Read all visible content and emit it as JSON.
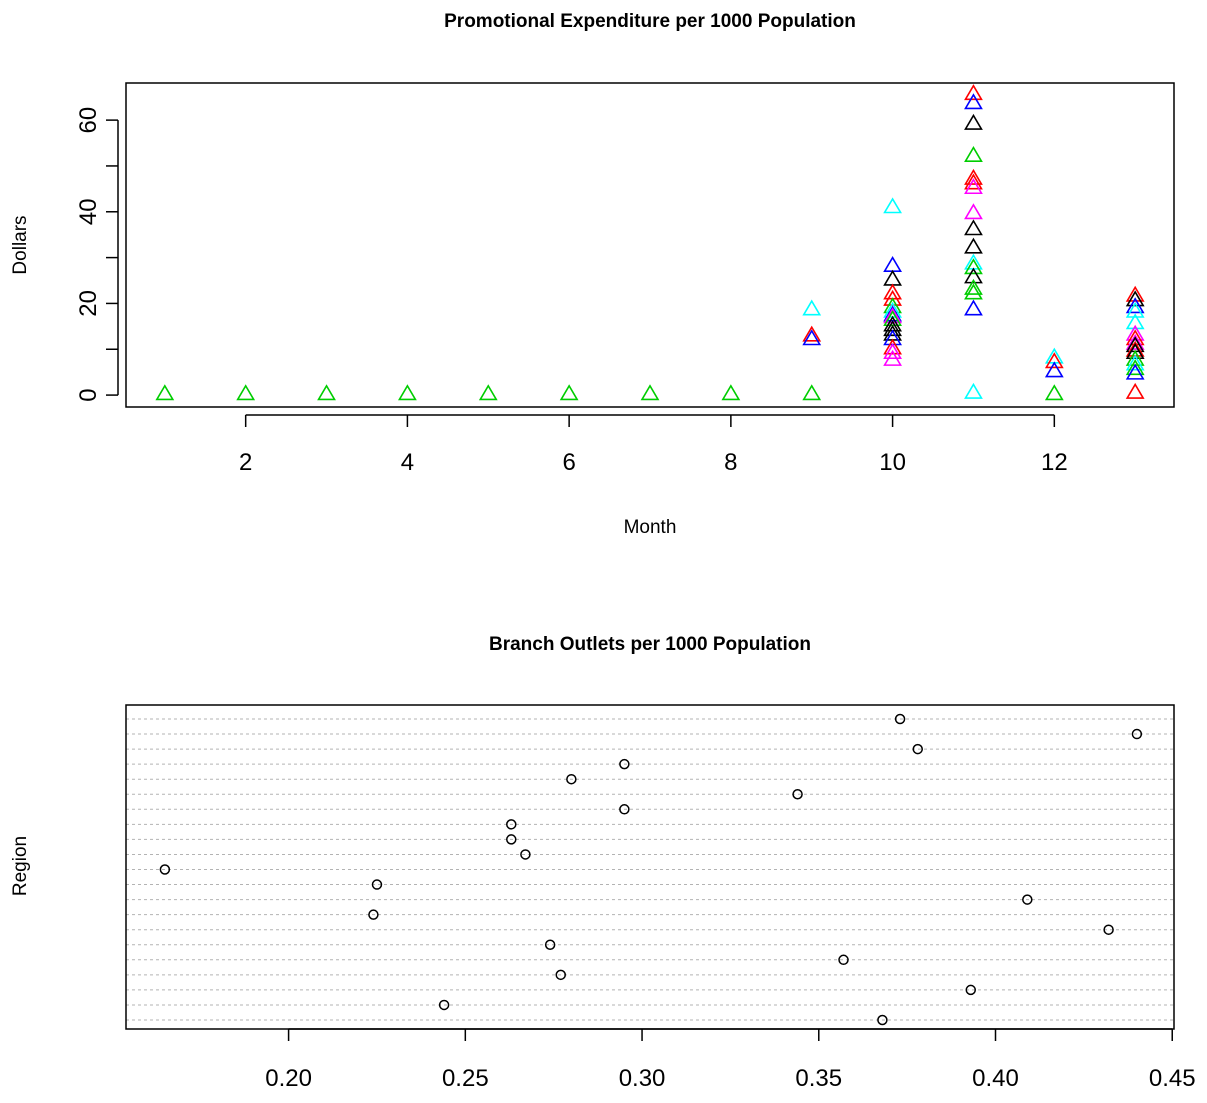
{
  "chart_data": [
    {
      "type": "scatter",
      "title": "Promotional Expenditure per 1000 Population",
      "xlabel": "Month",
      "ylabel": "Dollars",
      "xlim": [
        0.52,
        13.48
      ],
      "ylim": [
        -2.6,
        68.1
      ],
      "x_ticks": [
        2,
        4,
        6,
        8,
        10,
        12
      ],
      "y_ticks": [
        0,
        20,
        40,
        60
      ],
      "marker": "triangle",
      "points": [
        {
          "x": 1,
          "y": 0,
          "color": "#00CD00"
        },
        {
          "x": 2,
          "y": 0,
          "color": "#00CD00"
        },
        {
          "x": 3,
          "y": 0,
          "color": "#00CD00"
        },
        {
          "x": 4,
          "y": 0,
          "color": "#00CD00"
        },
        {
          "x": 5,
          "y": 0,
          "color": "#00CD00"
        },
        {
          "x": 6,
          "y": 0,
          "color": "#00CD00"
        },
        {
          "x": 7,
          "y": 0,
          "color": "#00CD00"
        },
        {
          "x": 8,
          "y": 0,
          "color": "#00CD00"
        },
        {
          "x": 9,
          "y": 0,
          "color": "#00CD00"
        },
        {
          "x": 9,
          "y": 18.5,
          "color": "#00FFFF"
        },
        {
          "x": 9,
          "y": 12.8,
          "color": "#FF0000"
        },
        {
          "x": 9,
          "y": 12.0,
          "color": "#0000FF"
        },
        {
          "x": 10,
          "y": 40.8,
          "color": "#00FFFF"
        },
        {
          "x": 10,
          "y": 28.0,
          "color": "#0000FF"
        },
        {
          "x": 10,
          "y": 25.0,
          "color": "#000000"
        },
        {
          "x": 10,
          "y": 22.0,
          "color": "#FF0000"
        },
        {
          "x": 10,
          "y": 20.6,
          "color": "#FF0000"
        },
        {
          "x": 10,
          "y": 19.0,
          "color": "#00CD00"
        },
        {
          "x": 10,
          "y": 18.0,
          "color": "#00FFFF"
        },
        {
          "x": 10,
          "y": 17.2,
          "color": "#0000FF"
        },
        {
          "x": 10,
          "y": 16.8,
          "color": "#FF00FF"
        },
        {
          "x": 10,
          "y": 16.2,
          "color": "#00CD00"
        },
        {
          "x": 10,
          "y": 15.0,
          "color": "#000000"
        },
        {
          "x": 10,
          "y": 14.0,
          "color": "#000000"
        },
        {
          "x": 10,
          "y": 13.0,
          "color": "#000000"
        },
        {
          "x": 10,
          "y": 12.0,
          "color": "#0000FF"
        },
        {
          "x": 10,
          "y": 10.0,
          "color": "#FF0000"
        },
        {
          "x": 10,
          "y": 9.0,
          "color": "#FF00FF"
        },
        {
          "x": 10,
          "y": 7.5,
          "color": "#FF00FF"
        },
        {
          "x": 11,
          "y": 65.5,
          "color": "#FF0000"
        },
        {
          "x": 11,
          "y": 63.5,
          "color": "#0000FF"
        },
        {
          "x": 11,
          "y": 59.0,
          "color": "#000000"
        },
        {
          "x": 11,
          "y": 52.0,
          "color": "#00CD00"
        },
        {
          "x": 11,
          "y": 47.0,
          "color": "#FF0000"
        },
        {
          "x": 11,
          "y": 46.0,
          "color": "#FF0000"
        },
        {
          "x": 11,
          "y": 45.0,
          "color": "#FF00FF"
        },
        {
          "x": 11,
          "y": 39.5,
          "color": "#FF00FF"
        },
        {
          "x": 11,
          "y": 36.0,
          "color": "#000000"
        },
        {
          "x": 11,
          "y": 32.0,
          "color": "#000000"
        },
        {
          "x": 11,
          "y": 28.5,
          "color": "#00FFFF"
        },
        {
          "x": 11,
          "y": 27.5,
          "color": "#00CD00"
        },
        {
          "x": 11,
          "y": 25.5,
          "color": "#000000"
        },
        {
          "x": 11,
          "y": 23.0,
          "color": "#00CD00"
        },
        {
          "x": 11,
          "y": 22.0,
          "color": "#00CD00"
        },
        {
          "x": 11,
          "y": 18.5,
          "color": "#0000FF"
        },
        {
          "x": 11,
          "y": 0.3,
          "color": "#00FFFF"
        },
        {
          "x": 12,
          "y": 8.0,
          "color": "#00FFFF"
        },
        {
          "x": 12,
          "y": 7.0,
          "color": "#FF0000"
        },
        {
          "x": 12,
          "y": 5.0,
          "color": "#0000FF"
        },
        {
          "x": 12,
          "y": 0,
          "color": "#00CD00"
        },
        {
          "x": 13,
          "y": 21.5,
          "color": "#FF0000"
        },
        {
          "x": 13,
          "y": 20.5,
          "color": "#000000"
        },
        {
          "x": 13,
          "y": 19.0,
          "color": "#0000FF"
        },
        {
          "x": 13,
          "y": 18.0,
          "color": "#00FFFF"
        },
        {
          "x": 13,
          "y": 15.5,
          "color": "#00FFFF"
        },
        {
          "x": 13,
          "y": 13.0,
          "color": "#FF00FF"
        },
        {
          "x": 13,
          "y": 12.0,
          "color": "#FF0000"
        },
        {
          "x": 13,
          "y": 11.0,
          "color": "#FF00FF"
        },
        {
          "x": 13,
          "y": 10.5,
          "color": "#000000"
        },
        {
          "x": 13,
          "y": 9.5,
          "color": "#FF0000"
        },
        {
          "x": 13,
          "y": 9.0,
          "color": "#000000"
        },
        {
          "x": 13,
          "y": 7.5,
          "color": "#00CD00"
        },
        {
          "x": 13,
          "y": 6.5,
          "color": "#00FFFF"
        },
        {
          "x": 13,
          "y": 5.5,
          "color": "#00CD00"
        },
        {
          "x": 13,
          "y": 4.5,
          "color": "#0000FF"
        },
        {
          "x": 13,
          "y": 0.3,
          "color": "#FF0000"
        }
      ]
    },
    {
      "type": "scatter",
      "title": "Branch Outlets per 1000 Population",
      "xlabel": "",
      "ylabel": "Region",
      "xlim": [
        0.154,
        0.4505
      ],
      "x_ticks": [
        "0.20",
        "0.25",
        "0.30",
        "0.35",
        "0.40",
        "0.45"
      ],
      "x_tick_values": [
        0.2,
        0.25,
        0.3,
        0.35,
        0.4,
        0.45
      ],
      "grid": true,
      "marker": "circle",
      "n_rows": 21,
      "points": [
        {
          "row": 1,
          "x": 0.373
        },
        {
          "row": 2,
          "x": 0.44
        },
        {
          "row": 3,
          "x": 0.378
        },
        {
          "row": 4,
          "x": 0.295
        },
        {
          "row": 5,
          "x": 0.28
        },
        {
          "row": 6,
          "x": 0.344
        },
        {
          "row": 7,
          "x": 0.295
        },
        {
          "row": 8,
          "x": 0.263
        },
        {
          "row": 9,
          "x": 0.263
        },
        {
          "row": 10,
          "x": 0.267
        },
        {
          "row": 11,
          "x": 0.165
        },
        {
          "row": 12,
          "x": 0.225
        },
        {
          "row": 13,
          "x": 0.409
        },
        {
          "row": 14,
          "x": 0.224
        },
        {
          "row": 15,
          "x": 0.432
        },
        {
          "row": 16,
          "x": 0.274
        },
        {
          "row": 17,
          "x": 0.357
        },
        {
          "row": 18,
          "x": 0.277
        },
        {
          "row": 19,
          "x": 0.393
        },
        {
          "row": 20,
          "x": 0.244
        },
        {
          "row": 21,
          "x": 0.368
        }
      ]
    }
  ]
}
